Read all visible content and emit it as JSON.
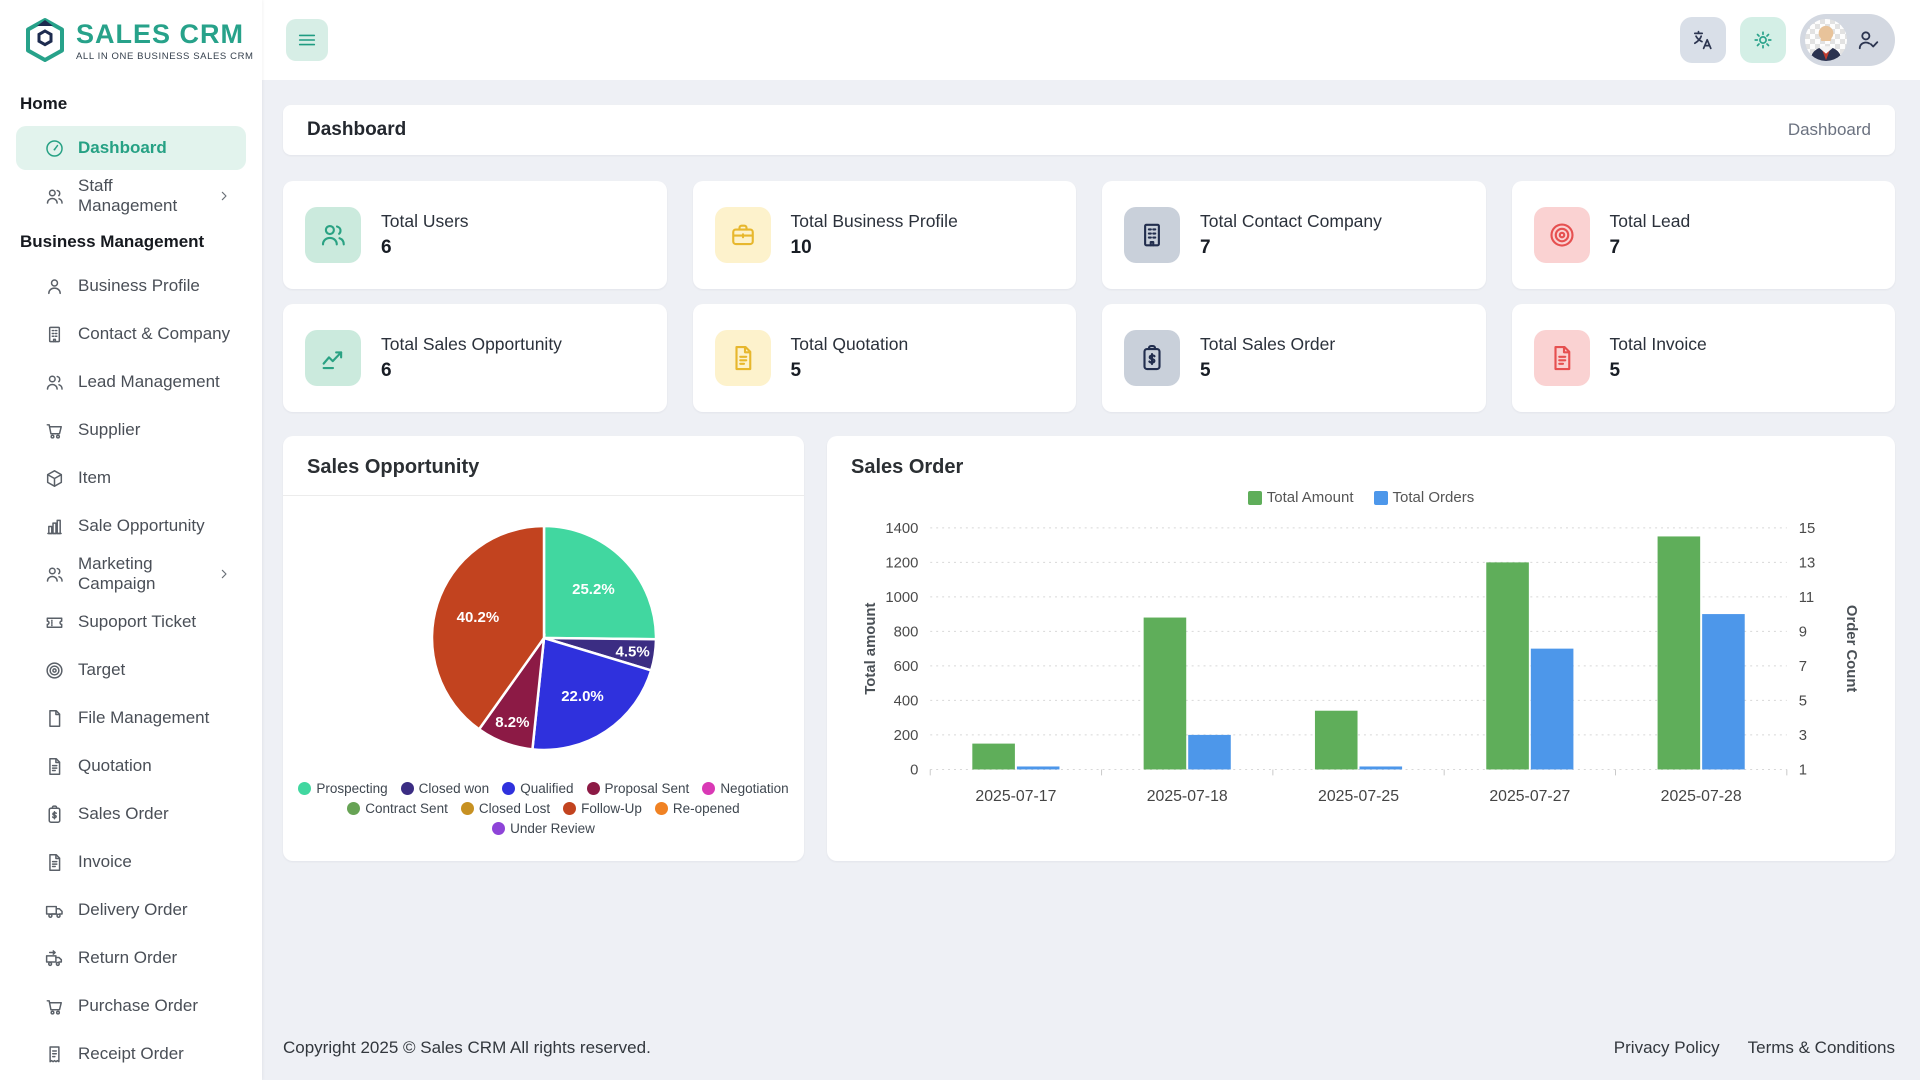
{
  "brand": {
    "name": "SALES CRM",
    "tagline": "ALL IN ONE BUSINESS SALES CRM"
  },
  "colors": {
    "brand_teal": "#27a28a",
    "active_bg": "#e2f3ed",
    "main_bg": "#eef0f5"
  },
  "sidebar": {
    "sections": [
      {
        "label": "Home",
        "items": [
          {
            "label": "Dashboard",
            "icon": "gauge",
            "active": true,
            "chevron": false
          },
          {
            "label": "Staff Management",
            "icon": "users",
            "active": false,
            "chevron": true
          }
        ]
      },
      {
        "label": "Business Management",
        "items": [
          {
            "label": "Business Profile",
            "icon": "person",
            "active": false,
            "chevron": false
          },
          {
            "label": "Contact & Company",
            "icon": "building",
            "active": false,
            "chevron": false
          },
          {
            "label": "Lead Management",
            "icon": "users",
            "active": false,
            "chevron": false
          },
          {
            "label": "Supplier",
            "icon": "cart",
            "active": false,
            "chevron": false
          },
          {
            "label": "Item",
            "icon": "box",
            "active": false,
            "chevron": false
          },
          {
            "label": "Sale Opportunity",
            "icon": "bar-chart",
            "active": false,
            "chevron": false
          },
          {
            "label": "Marketing Campaign",
            "icon": "users",
            "active": false,
            "chevron": true
          },
          {
            "label": "Supoport Ticket",
            "icon": "ticket",
            "active": false,
            "chevron": false
          },
          {
            "label": "Target",
            "icon": "target",
            "active": false,
            "chevron": false
          },
          {
            "label": "File Management",
            "icon": "file",
            "active": false,
            "chevron": false
          },
          {
            "label": "Quotation",
            "icon": "doc-lines",
            "active": false,
            "chevron": false
          },
          {
            "label": "Sales Order",
            "icon": "clipboard-dollar",
            "active": false,
            "chevron": false
          },
          {
            "label": "Invoice",
            "icon": "doc-lines",
            "active": false,
            "chevron": false
          },
          {
            "label": "Delivery Order",
            "icon": "truck",
            "active": false,
            "chevron": false
          },
          {
            "label": "Return Order",
            "icon": "truck-return",
            "active": false,
            "chevron": false
          },
          {
            "label": "Purchase Order",
            "icon": "cart",
            "active": false,
            "chevron": false
          },
          {
            "label": "Receipt Order",
            "icon": "receipt",
            "active": false,
            "chevron": false
          }
        ]
      }
    ]
  },
  "page": {
    "title": "Dashboard",
    "breadcrumb": "Dashboard"
  },
  "stats": [
    {
      "label": "Total Users",
      "value": "6",
      "icon": "users",
      "icon_bg": "#cbeadd",
      "icon_color": "#2aa283"
    },
    {
      "label": "Total Business Profile",
      "value": "10",
      "icon": "briefcase",
      "icon_bg": "#fdf2cc",
      "icon_color": "#e7b72d"
    },
    {
      "label": "Total Contact Company",
      "value": "7",
      "icon": "building",
      "icon_bg": "#c9d0da",
      "icon_color": "#222e4e"
    },
    {
      "label": "Total Lead",
      "value": "7",
      "icon": "target",
      "icon_bg": "#fad2d2",
      "icon_color": "#e65050"
    },
    {
      "label": "Total Sales Opportunity",
      "value": "6",
      "icon": "trend",
      "icon_bg": "#cbeadd",
      "icon_color": "#2aa283"
    },
    {
      "label": "Total Quotation",
      "value": "5",
      "icon": "doc-lines",
      "icon_bg": "#fdf2cc",
      "icon_color": "#e7b72d"
    },
    {
      "label": "Total Sales Order",
      "value": "5",
      "icon": "clipboard-dollar",
      "icon_bg": "#c9d0da",
      "icon_color": "#222e4e"
    },
    {
      "label": "Total Invoice",
      "value": "5",
      "icon": "doc-lines",
      "icon_bg": "#fad2d2",
      "icon_color": "#e65050"
    }
  ],
  "chart_data": [
    {
      "type": "pie",
      "title": "Sales Opportunity",
      "slices": [
        {
          "label": "Prospecting",
          "value": 25.2,
          "color": "#41d7a0"
        },
        {
          "label": "Closed won",
          "value": 4.5,
          "color": "#3b2d83"
        },
        {
          "label": "Qualified",
          "value": 22.0,
          "color": "#2f31dd"
        },
        {
          "label": "Proposal Sent",
          "value": 8.2,
          "color": "#8c1a45"
        },
        {
          "label": "Follow-Up",
          "value": 40.2,
          "color": "#c2431f"
        }
      ],
      "legend": [
        {
          "label": "Prospecting",
          "color": "#41d7a0"
        },
        {
          "label": "Closed won",
          "color": "#3b2d83"
        },
        {
          "label": "Qualified",
          "color": "#2f31dd"
        },
        {
          "label": "Proposal Sent",
          "color": "#8c1a45"
        },
        {
          "label": "Negotiation",
          "color": "#d939b5"
        },
        {
          "label": "Contract Sent",
          "color": "#67a355"
        },
        {
          "label": "Closed Lost",
          "color": "#c79122"
        },
        {
          "label": "Follow-Up",
          "color": "#c2431f"
        },
        {
          "label": "Re-opened",
          "color": "#f08223"
        },
        {
          "label": "Under Review",
          "color": "#8e44d8"
        }
      ],
      "labels_format": "percent"
    },
    {
      "type": "bar",
      "title": "Sales Order",
      "categories": [
        "2025-07-17",
        "2025-07-18",
        "2025-07-25",
        "2025-07-27",
        "2025-07-28"
      ],
      "series": [
        {
          "name": "Total Amount",
          "axis": "left",
          "color": "#5fae5a",
          "values": [
            150,
            880,
            340,
            1200,
            1350
          ]
        },
        {
          "name": "Total Orders",
          "axis": "right",
          "color": "#4d97ea",
          "values": [
            1,
            3,
            1,
            8,
            10
          ]
        }
      ],
      "left_axis": {
        "label": "Total amount",
        "min": 0,
        "max": 1400,
        "step": 200
      },
      "right_axis": {
        "label": "Order Count",
        "min": 1,
        "max": 15,
        "step": 2
      },
      "grid": "dashed",
      "legend_position": "top"
    }
  ],
  "footer": {
    "copyright": "Copyright 2025 © Sales CRM All rights reserved.",
    "links": [
      {
        "label": "Privacy Policy"
      },
      {
        "label": "Terms & Conditions"
      }
    ]
  }
}
